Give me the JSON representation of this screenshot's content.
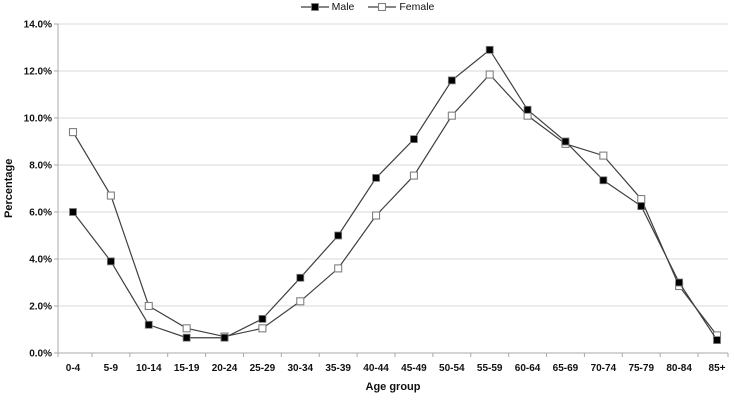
{
  "legend": {
    "items": [
      {
        "label": "Male",
        "marker": "filled-square-marker"
      },
      {
        "label": "Female",
        "marker": "open-square-marker"
      }
    ]
  },
  "axis_titles": {
    "y": "Percentage",
    "x": "Age group"
  },
  "colors": {
    "series_line": "#3f3f3f",
    "male_marker_fill": "#000000",
    "female_marker_fill": "#ffffff",
    "marker_stroke": "#808080",
    "gridline": "#dadada",
    "axis": "#a9a9a9",
    "text": "#111111"
  },
  "chart_data": {
    "type": "line",
    "title": "",
    "xlabel": "Age group",
    "ylabel": "Percentage",
    "categories": [
      "0-4",
      "5-9",
      "10-14",
      "15-19",
      "20-24",
      "25-29",
      "30-34",
      "35-39",
      "40-44",
      "45-49",
      "50-54",
      "55-59",
      "60-64",
      "65-69",
      "70-74",
      "75-79",
      "80-84",
      "85+"
    ],
    "series": [
      {
        "name": "Male",
        "marker": "filled-square",
        "values": [
          6.0,
          3.9,
          1.2,
          0.65,
          0.65,
          1.45,
          3.2,
          5.0,
          7.45,
          9.1,
          11.6,
          12.9,
          10.35,
          9.0,
          7.35,
          6.25,
          3.0,
          0.55
        ]
      },
      {
        "name": "Female",
        "marker": "open-square",
        "values": [
          9.4,
          6.7,
          2.0,
          1.05,
          0.7,
          1.05,
          2.2,
          3.6,
          5.85,
          7.55,
          10.1,
          11.85,
          10.1,
          8.9,
          8.4,
          6.55,
          2.85,
          0.75
        ]
      }
    ],
    "ylim": [
      0,
      14
    ],
    "ytick_step": 2,
    "ytick_decimals": 1,
    "ytick_suffix": "%",
    "grid": true,
    "legend_position": "top-center"
  }
}
